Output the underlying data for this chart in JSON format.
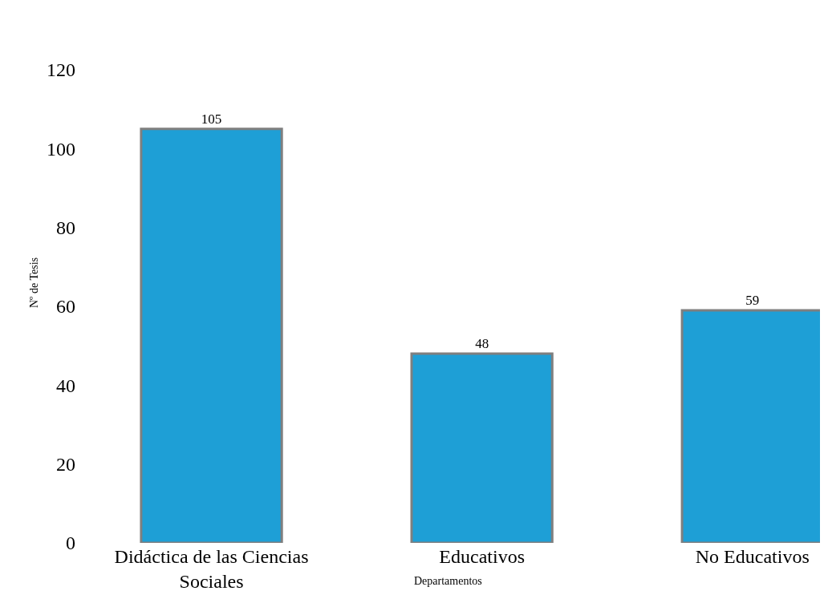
{
  "chart_data": {
    "type": "bar",
    "xlabel": "Departamentos",
    "ylabel": "Nº de Tesis",
    "categories": [
      "Didáctica de las Ciencias Sociales",
      "Educativos",
      "No Educativos"
    ],
    "values": [
      105,
      48,
      59
    ],
    "color": "#1e9fd6",
    "ylim": [
      0,
      120
    ],
    "yticks": [
      0,
      20,
      40,
      60,
      80,
      100,
      120
    ],
    "data_labels": true,
    "legend": false
  }
}
